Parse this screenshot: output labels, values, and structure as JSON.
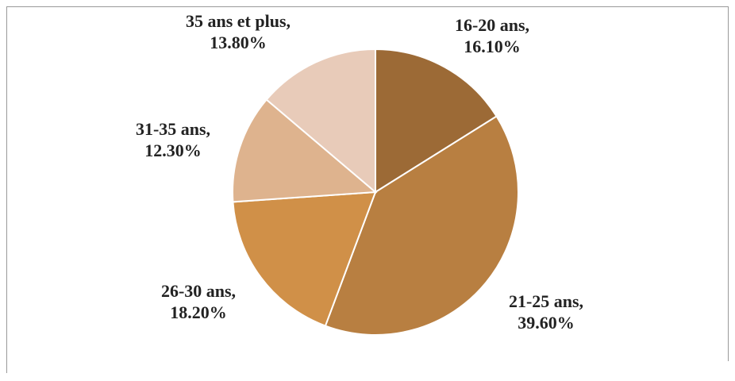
{
  "chart_data": {
    "type": "pie",
    "categories": [
      "16-20 ans,",
      "21-25 ans,",
      "26-30 ans,",
      "31-35 ans,",
      "35 ans et plus,"
    ],
    "values": [
      16.1,
      39.6,
      18.2,
      12.3,
      13.8
    ],
    "value_labels": [
      "16.10%",
      "39.60%",
      "18.20%",
      "12.30%",
      "13.80%"
    ],
    "colors": [
      "#9c6a36",
      "#b87f41",
      "#d09048",
      "#deb38e",
      "#e8cbb9"
    ]
  }
}
